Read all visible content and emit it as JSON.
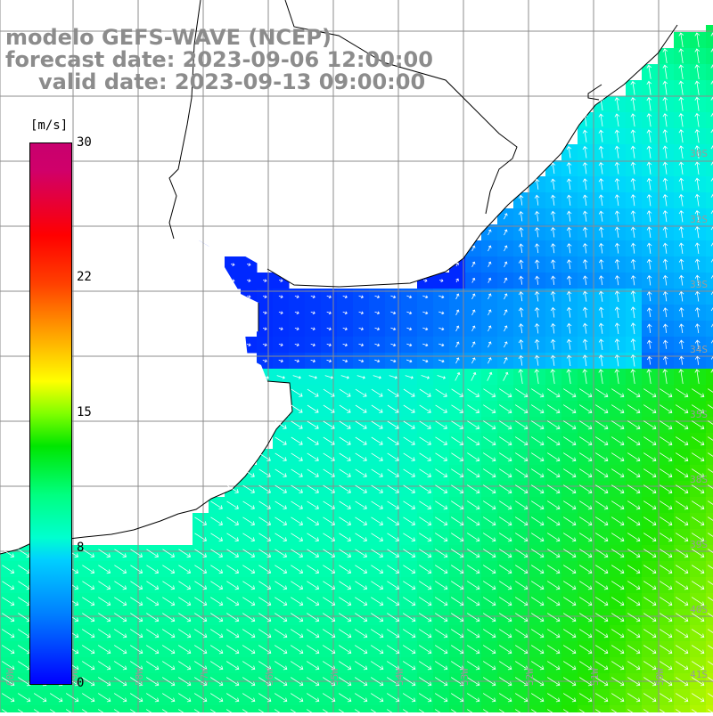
{
  "title": {
    "line1": "modelo GEFS-WAVE (NCEP)",
    "line2": "forecast date: 2023-09-06 12:00:00",
    "line3": "valid date: 2023-09-13 09:00:00"
  },
  "colorbar": {
    "unit": "[m/s]",
    "min": 0,
    "max": 30,
    "ticks": [
      "30",
      "22",
      "15",
      "8",
      "0"
    ],
    "tick_values": [
      30,
      22,
      15,
      8,
      0
    ]
  },
  "lat_labels": [
    "30S",
    "32S",
    "33S",
    "34S",
    "35S",
    "38S",
    "39S",
    "40S",
    "41S"
  ],
  "lon_labels": [
    "60W",
    "59W",
    "58W",
    "57W",
    "56W",
    "55W",
    "54W",
    "53W",
    "52W",
    "51W",
    "50W"
  ],
  "colors": {
    "land": "#ffffff",
    "grid": "#8c8c8c",
    "coast": "#000000",
    "arrow": "#ffffff"
  },
  "wind_field": {
    "description_units": "m/s",
    "regions": [
      {
        "zone": "estuary",
        "speed": 1.5,
        "direction": "variable"
      },
      {
        "zone": "offshore-north",
        "speed": 9,
        "direction": "to-north"
      },
      {
        "zone": "south",
        "speed": 11,
        "direction": "to-southeast"
      }
    ]
  }
}
